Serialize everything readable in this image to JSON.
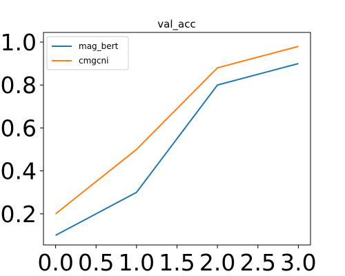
{
  "chart_data": {
    "type": "line",
    "title": "val_acc",
    "xlabel": "",
    "ylabel": "",
    "xlim": [
      -0.15,
      3.15
    ],
    "ylim": [
      0.055,
      1.045
    ],
    "xticks": [
      0.0,
      0.5,
      1.0,
      1.5,
      2.0,
      2.5,
      3.0
    ],
    "xtick_labels": [
      "0.0",
      "0.5",
      "1.0",
      "1.5",
      "2.0",
      "2.5",
      "3.0"
    ],
    "yticks": [
      0.2,
      0.4,
      0.6,
      0.8,
      1.0
    ],
    "ytick_labels": [
      "0.2",
      "0.4",
      "0.6",
      "0.8",
      "1.0"
    ],
    "grid": false,
    "legend_position": "top-left",
    "x": [
      0,
      1,
      2,
      3
    ],
    "series": [
      {
        "name": "mag_bert",
        "values": [
          0.1,
          0.3,
          0.8,
          0.9
        ],
        "color": "#1f77b4"
      },
      {
        "name": "cmgcni",
        "values": [
          0.2,
          0.5,
          0.88,
          0.98
        ],
        "color": "#ff7f0e"
      }
    ]
  }
}
